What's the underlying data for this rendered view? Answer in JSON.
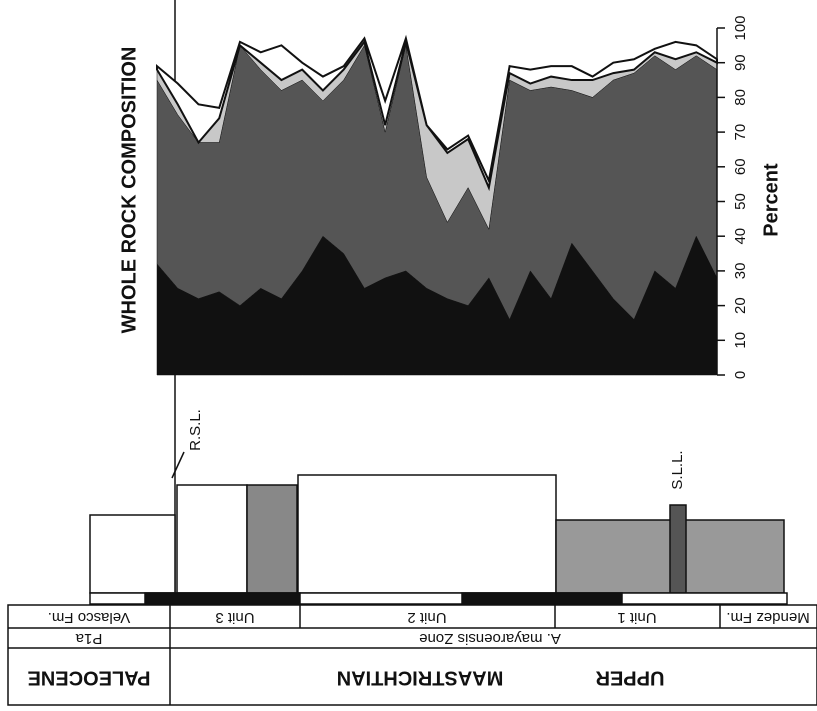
{
  "chart_data": {
    "type": "stacked-area",
    "title": "WHOLE ROCK COMPOSITION",
    "y_label": "Percent",
    "categories": [
      null,
      null,
      null,
      null,
      null,
      null,
      null,
      null,
      null,
      null,
      null,
      null,
      null,
      null,
      null,
      null,
      null,
      null,
      null,
      null,
      null,
      null,
      null,
      null,
      null,
      null,
      null,
      null
    ],
    "series": [
      {
        "color": "#111111",
        "values": [
          32,
          25,
          22,
          24,
          20,
          25,
          22,
          30,
          40,
          35,
          25,
          28,
          30,
          25,
          22,
          20,
          28,
          16,
          30,
          22,
          38,
          30,
          22,
          16,
          30,
          25,
          40,
          28
        ]
      },
      {
        "color": "#555555",
        "values": [
          53,
          50,
          45,
          43,
          75,
          63,
          60,
          55,
          39,
          50,
          70,
          42,
          65,
          32,
          22,
          34,
          14,
          69,
          52,
          61,
          44,
          50,
          63,
          71,
          62,
          63,
          52,
          60
        ]
      },
      {
        "color": "#c8c8c8",
        "values": [
          3,
          3,
          0,
          7,
          0,
          2,
          3,
          3,
          3,
          3,
          1,
          2,
          1,
          15,
          20,
          14,
          12,
          2,
          2,
          3,
          3,
          5,
          2,
          1,
          1,
          3,
          1,
          2
        ]
      },
      {
        "color": "#ffffff",
        "values": [
          1,
          6,
          11,
          3,
          1,
          3,
          10,
          2,
          4,
          1,
          1,
          7,
          1,
          0,
          1,
          1,
          2,
          2,
          4,
          3,
          4,
          1,
          3,
          3,
          1,
          5,
          2,
          1
        ]
      }
    ],
    "ylim": [
      0,
      100
    ],
    "yticks": [
      0,
      10,
      20,
      30,
      40,
      50,
      60,
      70,
      80,
      90,
      100
    ]
  },
  "stratigraphy": {
    "markers": [
      "R.S.L.",
      "S.L.L."
    ],
    "formations": [
      "Velasco Fm.",
      "Unit 3",
      "Unit 2",
      "Unit 1",
      "Mendez Fm."
    ],
    "zones": [
      "P1a",
      "A. mayaroensis Zone"
    ],
    "stages": [
      "PALEOCENE",
      "UPPER",
      "MAASTRICHTIAN"
    ]
  }
}
